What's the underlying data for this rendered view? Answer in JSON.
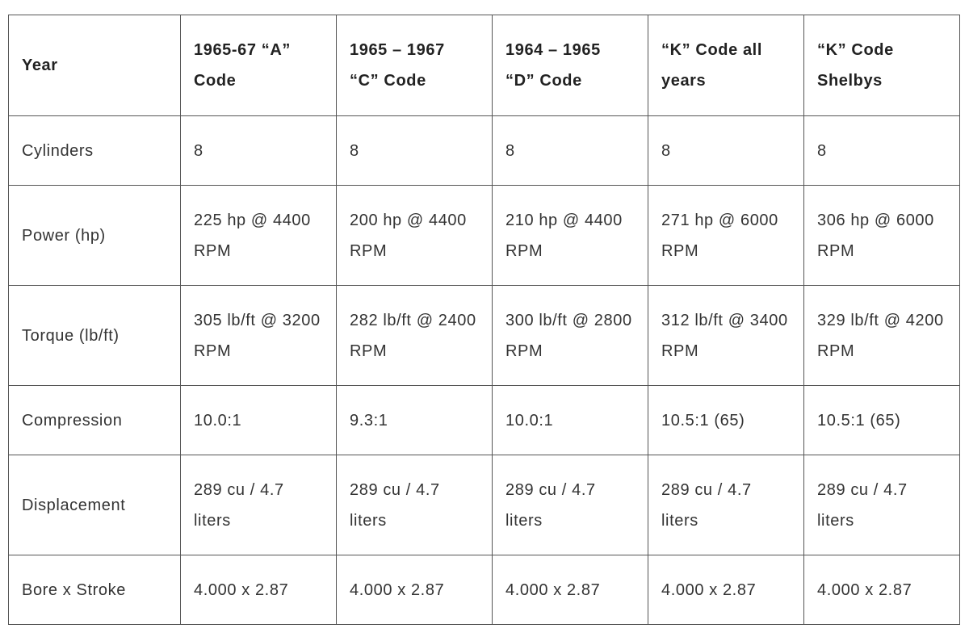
{
  "table": {
    "header": [
      "Year",
      "1965-67 “A” Code",
      "1965 – 1967 “C” Code",
      "1964 – 1965 “D” Code",
      "“K” Code all years",
      "“K” Code Shelbys"
    ],
    "rows": [
      [
        "Cylinders",
        "8",
        "8",
        "8",
        "8",
        "8"
      ],
      [
        "Power (hp)",
        "225 hp @ 4400 RPM",
        "200 hp @ 4400 RPM",
        "210 hp @ 4400 RPM",
        "271 hp @ 6000 RPM",
        "306 hp @ 6000 RPM"
      ],
      [
        "Torque (lb/ft)",
        "305 lb/ft @ 3200 RPM",
        "282 lb/ft @ 2400 RPM",
        "300 lb/ft @ 2800 RPM",
        "312 lb/ft @ 3400 RPM",
        "329 lb/ft @ 4200 RPM"
      ],
      [
        "Compression",
        "10.0:1",
        "9.3:1",
        "10.0:1",
        "10.5:1 (65)",
        "10.5:1 (65)"
      ],
      [
        "Displacement",
        "289 cu / 4.7 liters",
        "289 cu / 4.7 liters",
        "289 cu / 4.7 liters",
        "289 cu / 4.7 liters",
        "289 cu / 4.7 liters"
      ],
      [
        "Bore x Stroke",
        "4.000 x 2.87",
        "4.000 x 2.87",
        "4.000 x 2.87",
        "4.000 x 2.87",
        "4.000 x 2.87"
      ]
    ]
  }
}
